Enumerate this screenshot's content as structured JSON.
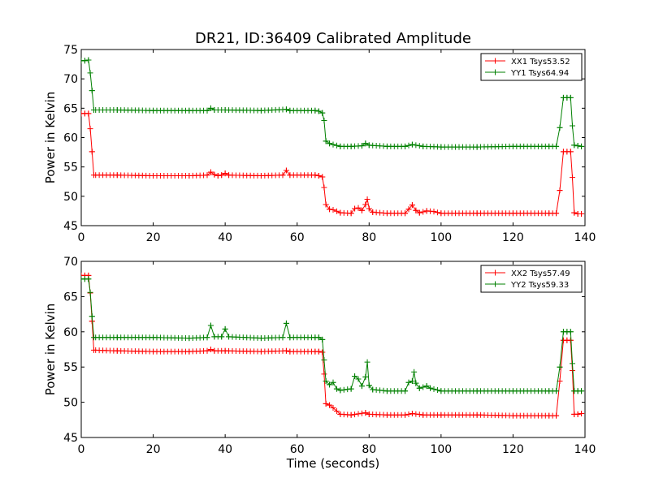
{
  "title": "DR21, ID:36409 Calibrated Amplitude",
  "colors": {
    "xx": "#ff0000",
    "yy": "#008000",
    "axes": "#000000",
    "background": "#ffffff"
  },
  "chart_data": [
    {
      "type": "line",
      "title": "DR21, ID:36409 Calibrated Amplitude",
      "xlabel": "",
      "ylabel": "Power in Kelvin",
      "xlim": [
        0,
        140
      ],
      "ylim": [
        45,
        75
      ],
      "xticks": [
        0,
        20,
        40,
        60,
        80,
        100,
        120,
        140
      ],
      "yticks": [
        45,
        50,
        55,
        60,
        65,
        70,
        75
      ],
      "grid": false,
      "legend": "top-right",
      "marker": "plus",
      "series": [
        {
          "name": "XX1 Tsys53.52",
          "color": "#ff0000",
          "points": [
            [
              0,
              64.1
            ],
            [
              1,
              64.1
            ],
            [
              2,
              64.1
            ],
            [
              2.5,
              61.5
            ],
            [
              3,
              57.6
            ],
            [
              3.5,
              53.6
            ],
            [
              10,
              53.6
            ],
            [
              20,
              53.5
            ],
            [
              30,
              53.5
            ],
            [
              35,
              53.6
            ],
            [
              36,
              54.1
            ],
            [
              37,
              53.7
            ],
            [
              38,
              53.5
            ],
            [
              39,
              53.6
            ],
            [
              40,
              53.9
            ],
            [
              41,
              53.6
            ],
            [
              50,
              53.5
            ],
            [
              56,
              53.6
            ],
            [
              57,
              54.4
            ],
            [
              58,
              53.6
            ],
            [
              65,
              53.6
            ],
            [
              66,
              53.5
            ],
            [
              67,
              53.3
            ],
            [
              67.5,
              51.5
            ],
            [
              68,
              48.6
            ],
            [
              69,
              47.8
            ],
            [
              70,
              47.7
            ],
            [
              72,
              47.2
            ],
            [
              75,
              47.1
            ],
            [
              76,
              47.9
            ],
            [
              77,
              48.0
            ],
            [
              78,
              47.6
            ],
            [
              79,
              48.6
            ],
            [
              79.5,
              49.5
            ],
            [
              80,
              47.9
            ],
            [
              81,
              47.3
            ],
            [
              85,
              47.1
            ],
            [
              90,
              47.1
            ],
            [
              91,
              47.8
            ],
            [
              92,
              48.5
            ],
            [
              93,
              47.6
            ],
            [
              94,
              47.2
            ],
            [
              96,
              47.5
            ],
            [
              98,
              47.4
            ],
            [
              100,
              47.1
            ],
            [
              110,
              47.1
            ],
            [
              120,
              47.1
            ],
            [
              130,
              47.1
            ],
            [
              132,
              47.1
            ],
            [
              133,
              51.0
            ],
            [
              134,
              57.6
            ],
            [
              135,
              57.6
            ],
            [
              136,
              57.6
            ],
            [
              136.5,
              53.2
            ],
            [
              137,
              47.2
            ],
            [
              138,
              47.0
            ],
            [
              139,
              47.0
            ]
          ]
        },
        {
          "name": "YY1 Tsys64.94",
          "color": "#008000",
          "points": [
            [
              0,
              73.1
            ],
            [
              1,
              73.1
            ],
            [
              2,
              73.2
            ],
            [
              2.5,
              71.0
            ],
            [
              3,
              68.0
            ],
            [
              3.5,
              64.7
            ],
            [
              10,
              64.7
            ],
            [
              20,
              64.6
            ],
            [
              30,
              64.6
            ],
            [
              35,
              64.6
            ],
            [
              36,
              65.0
            ],
            [
              37,
              64.7
            ],
            [
              40,
              64.7
            ],
            [
              50,
              64.6
            ],
            [
              57,
              64.8
            ],
            [
              58,
              64.6
            ],
            [
              65,
              64.6
            ],
            [
              66,
              64.5
            ],
            [
              67,
              64.2
            ],
            [
              67.5,
              62.9
            ],
            [
              68,
              59.4
            ],
            [
              69,
              59.0
            ],
            [
              70,
              58.8
            ],
            [
              72,
              58.5
            ],
            [
              75,
              58.5
            ],
            [
              78,
              58.6
            ],
            [
              79,
              59.0
            ],
            [
              80,
              58.7
            ],
            [
              85,
              58.5
            ],
            [
              90,
              58.5
            ],
            [
              92,
              58.8
            ],
            [
              95,
              58.5
            ],
            [
              100,
              58.4
            ],
            [
              110,
              58.4
            ],
            [
              120,
              58.5
            ],
            [
              130,
              58.5
            ],
            [
              132,
              58.5
            ],
            [
              133,
              61.7
            ],
            [
              134,
              66.8
            ],
            [
              135,
              66.8
            ],
            [
              136,
              66.8
            ],
            [
              136.5,
              62.0
            ],
            [
              137,
              58.7
            ],
            [
              138,
              58.6
            ],
            [
              139,
              58.5
            ]
          ]
        }
      ]
    },
    {
      "type": "line",
      "title": "",
      "xlabel": "Time (seconds)",
      "ylabel": "Power in Kelvin",
      "xlim": [
        0,
        140
      ],
      "ylim": [
        45,
        70
      ],
      "xticks": [
        0,
        20,
        40,
        60,
        80,
        100,
        120,
        140
      ],
      "yticks": [
        45,
        50,
        55,
        60,
        65,
        70
      ],
      "grid": false,
      "legend": "top-right",
      "marker": "plus",
      "series": [
        {
          "name": "XX2 Tsys57.49",
          "color": "#ff0000",
          "points": [
            [
              0,
              68.0
            ],
            [
              1,
              68.0
            ],
            [
              2,
              68.0
            ],
            [
              2.5,
              65.5
            ],
            [
              3,
              61.5
            ],
            [
              3.5,
              57.4
            ],
            [
              10,
              57.3
            ],
            [
              20,
              57.2
            ],
            [
              30,
              57.2
            ],
            [
              35,
              57.3
            ],
            [
              36,
              57.5
            ],
            [
              37,
              57.3
            ],
            [
              40,
              57.3
            ],
            [
              50,
              57.2
            ],
            [
              57,
              57.3
            ],
            [
              58,
              57.2
            ],
            [
              65,
              57.2
            ],
            [
              66,
              57.2
            ],
            [
              67,
              57.1
            ],
            [
              67.5,
              54.0
            ],
            [
              68,
              49.8
            ],
            [
              69,
              49.6
            ],
            [
              70,
              49.2
            ],
            [
              72,
              48.3
            ],
            [
              75,
              48.2
            ],
            [
              79,
              48.5
            ],
            [
              80,
              48.3
            ],
            [
              85,
              48.2
            ],
            [
              90,
              48.2
            ],
            [
              92,
              48.4
            ],
            [
              95,
              48.2
            ],
            [
              100,
              48.2
            ],
            [
              110,
              48.2
            ],
            [
              120,
              48.1
            ],
            [
              130,
              48.1
            ],
            [
              132,
              48.1
            ],
            [
              133,
              53.0
            ],
            [
              134,
              58.8
            ],
            [
              135,
              58.8
            ],
            [
              136,
              58.8
            ],
            [
              136.5,
              54.5
            ],
            [
              137,
              48.3
            ],
            [
              138,
              48.3
            ],
            [
              139,
              48.4
            ]
          ]
        },
        {
          "name": "YY2 Tsys59.33",
          "color": "#008000",
          "points": [
            [
              0,
              67.5
            ],
            [
              1,
              67.5
            ],
            [
              2,
              67.5
            ],
            [
              2.5,
              65.6
            ],
            [
              3,
              62.2
            ],
            [
              3.5,
              59.2
            ],
            [
              10,
              59.2
            ],
            [
              20,
              59.2
            ],
            [
              30,
              59.1
            ],
            [
              35,
              59.2
            ],
            [
              36,
              60.9
            ],
            [
              37,
              59.3
            ],
            [
              39,
              59.3
            ],
            [
              40,
              60.4
            ],
            [
              41,
              59.3
            ],
            [
              50,
              59.1
            ],
            [
              56,
              59.2
            ],
            [
              57,
              61.2
            ],
            [
              58,
              59.2
            ],
            [
              65,
              59.2
            ],
            [
              66,
              59.2
            ],
            [
              67,
              58.9
            ],
            [
              67.5,
              56.0
            ],
            [
              68,
              53.0
            ],
            [
              69,
              52.5
            ],
            [
              70,
              52.8
            ],
            [
              71,
              51.9
            ],
            [
              72,
              51.7
            ],
            [
              75,
              51.9
            ],
            [
              76,
              53.7
            ],
            [
              77,
              53.3
            ],
            [
              78,
              52.3
            ],
            [
              79,
              53.6
            ],
            [
              79.5,
              55.7
            ],
            [
              80,
              52.4
            ],
            [
              81,
              51.8
            ],
            [
              85,
              51.6
            ],
            [
              90,
              51.6
            ],
            [
              91,
              52.8
            ],
            [
              92,
              53.0
            ],
            [
              92.5,
              54.3
            ],
            [
              93,
              52.7
            ],
            [
              94,
              52.0
            ],
            [
              96,
              52.3
            ],
            [
              97,
              52.0
            ],
            [
              100,
              51.6
            ],
            [
              110,
              51.6
            ],
            [
              120,
              51.6
            ],
            [
              130,
              51.6
            ],
            [
              132,
              51.6
            ],
            [
              133,
              55.0
            ],
            [
              134,
              60.0
            ],
            [
              135,
              60.0
            ],
            [
              136,
              60.0
            ],
            [
              136.5,
              55.5
            ],
            [
              137,
              51.6
            ],
            [
              138,
              51.6
            ],
            [
              139,
              51.6
            ]
          ]
        }
      ]
    }
  ]
}
